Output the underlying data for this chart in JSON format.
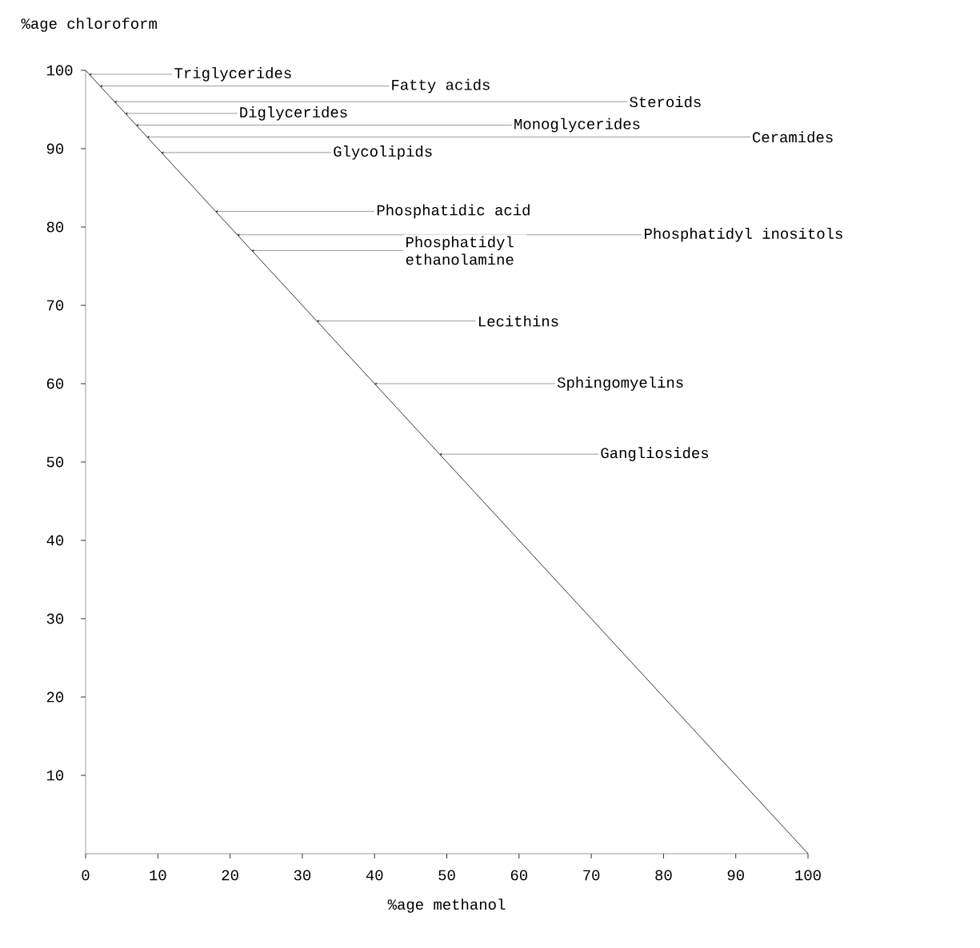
{
  "chart_data": {
    "type": "line",
    "xlabel": "%age methanol",
    "ylabel": "%age chloroform",
    "x": [
      0,
      100
    ],
    "series": [
      {
        "color": "#000000",
        "values": [
          100,
          0
        ]
      }
    ],
    "xlim": [
      0,
      100
    ],
    "ylim": [
      0,
      100
    ],
    "xticks": [
      0,
      10,
      20,
      30,
      40,
      50,
      60,
      70,
      80,
      90,
      100
    ],
    "yticks": [
      10,
      20,
      30,
      40,
      50,
      60,
      70,
      80,
      90,
      100
    ],
    "annotations": [
      {
        "text": "Triglycerides",
        "x": 0.5,
        "y": 99.5
      },
      {
        "text": "Fatty acids",
        "x": 2,
        "y": 98
      },
      {
        "text": "Steroids",
        "x": 4,
        "y": 96
      },
      {
        "text": "Diglycerides",
        "x": 5.5,
        "y": 94.5
      },
      {
        "text": "Monoglycerides",
        "x": 7,
        "y": 93
      },
      {
        "text": "Ceramides",
        "x": 8.5,
        "y": 91.5
      },
      {
        "text": "Glycolipids",
        "x": 10.5,
        "y": 89.5
      },
      {
        "text": "Phosphatidic acid",
        "x": 18,
        "y": 82
      },
      {
        "text": "Phosphatidyl inositols",
        "x": 21,
        "y": 79
      },
      {
        "text": "Phosphatidyl ethanolamine",
        "x": 23,
        "y": 77
      },
      {
        "text": "Lecithins",
        "x": 32,
        "y": 68
      },
      {
        "text": "Sphingomyelins",
        "x": 40,
        "y": 60
      },
      {
        "text": "Gangliosides",
        "x": 49,
        "y": 51
      }
    ]
  }
}
